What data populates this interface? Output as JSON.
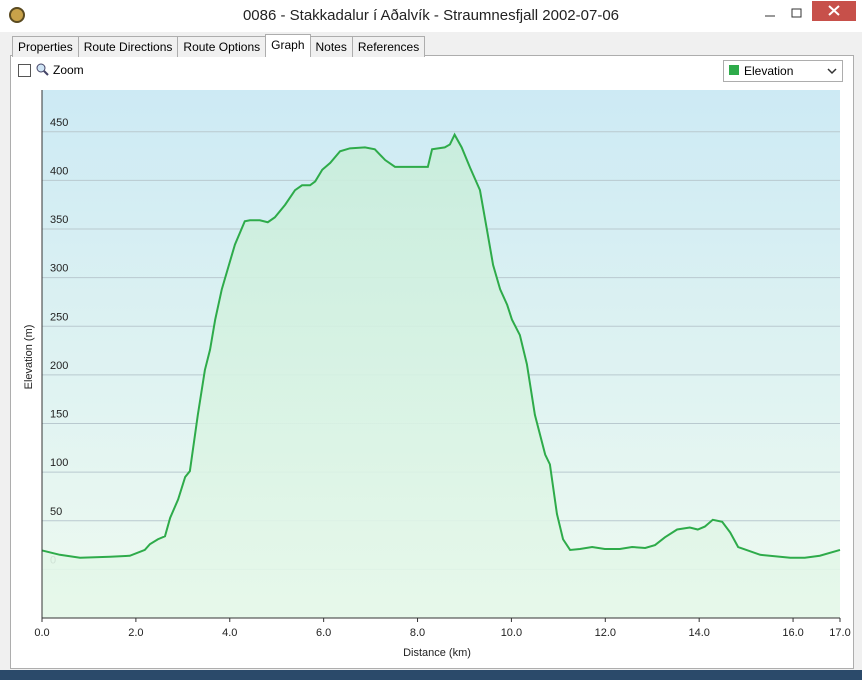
{
  "window": {
    "title": "0086 - Stakkadalur í Aðalvík - Straumnesfjall 2002-07-06"
  },
  "tabs": [
    "Properties",
    "Route Directions",
    "Route Options",
    "Graph",
    "Notes",
    "References"
  ],
  "toolbar": {
    "zoom_label": "Zoom"
  },
  "chart_data": {
    "type": "line",
    "x_label": "Distance  (km)",
    "y_label": "Elevation (m)",
    "x": [
      0,
      0.38,
      0.81,
      1.45,
      1.87,
      2.19,
      2.3,
      2.47,
      2.62,
      2.73,
      2.9,
      3.05,
      3.15,
      3.32,
      3.47,
      3.58,
      3.69,
      3.83,
      4.0,
      4.11,
      4.32,
      4.43,
      4.64,
      4.81,
      4.96,
      5.18,
      5.39,
      5.54,
      5.71,
      5.82,
      5.97,
      6.14,
      6.35,
      6.56,
      6.88,
      7.09,
      7.31,
      7.52,
      7.84,
      8.22,
      8.31,
      8.58,
      8.69,
      8.79,
      8.94,
      9.12,
      9.33,
      9.48,
      9.61,
      9.76,
      9.91,
      10.01,
      10.18,
      10.33,
      10.5,
      10.72,
      10.82,
      10.97,
      11.1,
      11.25,
      11.46,
      11.72,
      11.99,
      12.31,
      12.57,
      12.85,
      13.06,
      13.27,
      13.53,
      13.8,
      13.97,
      14.12,
      14.29,
      14.49,
      14.66,
      14.83,
      15.3,
      15.94,
      16.25,
      16.57,
      17.0
    ],
    "series": [
      {
        "name": "Elevation",
        "color": "#2eab4a",
        "values": [
          19.5,
          15,
          12,
          13,
          14,
          20,
          26,
          31,
          34,
          53,
          72,
          95,
          101,
          159,
          205,
          226,
          257,
          288,
          316,
          334,
          358,
          359,
          359,
          357,
          362,
          375,
          390,
          395,
          395,
          399,
          411,
          418,
          430,
          433,
          434,
          432,
          421,
          414,
          414,
          414,
          432,
          434,
          437,
          447,
          434,
          413,
          390,
          349,
          313,
          288,
          272,
          257,
          241,
          211,
          159,
          118,
          108,
          57,
          31,
          20,
          21,
          23,
          21,
          21,
          23,
          22,
          25,
          33,
          41,
          43,
          41,
          44,
          51,
          49,
          38,
          23,
          15,
          12,
          12,
          14,
          20
        ]
      }
    ],
    "xlim": [
      0,
      17
    ],
    "xticks": [
      {
        "value": 0,
        "label": "0.0"
      },
      {
        "value": 2,
        "label": "2.0"
      },
      {
        "value": 4,
        "label": "4.0"
      },
      {
        "value": 6,
        "label": "6.0"
      },
      {
        "value": 8,
        "label": "8.0"
      },
      {
        "value": 10,
        "label": "10.0"
      },
      {
        "value": 12,
        "label": "12.0"
      },
      {
        "value": 14,
        "label": "14.0"
      },
      {
        "value": 16,
        "label": "16.0"
      },
      {
        "value": 17,
        "label": "17.0"
      }
    ],
    "ylim": [
      -50,
      493
    ],
    "yticks": [
      0,
      50,
      100,
      150,
      200,
      250,
      300,
      350,
      400,
      450
    ],
    "grid": true
  }
}
